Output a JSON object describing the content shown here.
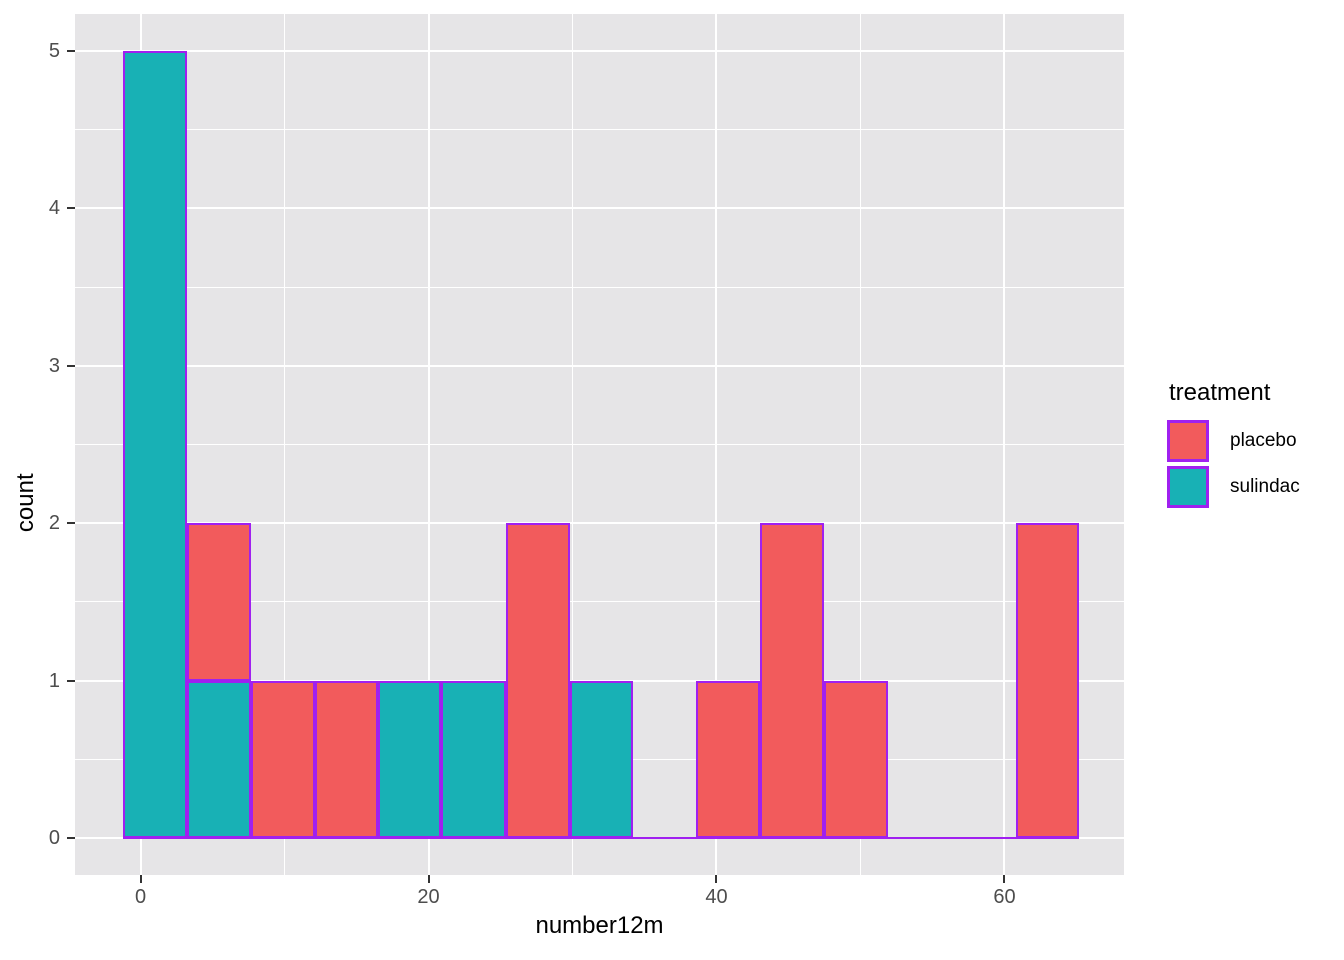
{
  "figure": {
    "x_axis_title": "number12m",
    "y_axis_title": "count"
  },
  "legend": {
    "title": "treatment",
    "items": [
      {
        "key": "placebo",
        "label": "placebo"
      },
      {
        "key": "sulindac",
        "label": "sulindac"
      }
    ]
  },
  "colors": {
    "placebo_fill": "#F25B5C",
    "sulindac_fill": "#18B1B5",
    "bar_outline": "#A020F0",
    "panel_background": "#E6E5E7",
    "gridline": "#FFFFFF",
    "tick_mark": "#333333",
    "tick_label": "#4D4D4D",
    "figure_background": "#FFFFFF"
  },
  "chart_data": {
    "type": "bar",
    "subtype": "stacked-histogram",
    "title": "",
    "xlabel": "number12m",
    "ylabel": "count",
    "legend_title": "treatment",
    "legend_position": "right",
    "grid": true,
    "x_domain": [
      -4.55,
      68.3
    ],
    "y_domain": [
      -0.235,
      5.235
    ],
    "x_ticks": [
      0,
      20,
      40,
      60
    ],
    "x_tick_labels": [
      "0",
      "20",
      "40",
      "60"
    ],
    "x_minor_ticks": [
      10,
      30,
      50
    ],
    "y_ticks": [
      0,
      1,
      2,
      3,
      4,
      5
    ],
    "y_tick_labels": [
      "0",
      "1",
      "2",
      "3",
      "4",
      "5"
    ],
    "y_minor_ticks": [
      0.5,
      1.5,
      2.5,
      3.5,
      4.5
    ],
    "series": [
      "placebo",
      "sulindac"
    ],
    "series_colors": {
      "placebo": "#F25B5C",
      "sulindac": "#18B1B5"
    },
    "bar_outline": "#A020F0",
    "bin_width": 4.42,
    "bars": [
      {
        "x0": -1.2,
        "x1": 3.2,
        "segments": [
          {
            "series": "sulindac",
            "count": 5
          }
        ]
      },
      {
        "x0": 3.2,
        "x1": 7.7,
        "segments": [
          {
            "series": "sulindac",
            "count": 1
          },
          {
            "series": "placebo",
            "count": 1
          }
        ]
      },
      {
        "x0": 7.7,
        "x1": 12.1,
        "segments": [
          {
            "series": "placebo",
            "count": 1
          }
        ]
      },
      {
        "x0": 12.1,
        "x1": 16.5,
        "segments": [
          {
            "series": "placebo",
            "count": 1
          }
        ]
      },
      {
        "x0": 16.5,
        "x1": 20.9,
        "segments": [
          {
            "series": "sulindac",
            "count": 1
          }
        ]
      },
      {
        "x0": 20.9,
        "x1": 25.4,
        "segments": [
          {
            "series": "sulindac",
            "count": 1
          }
        ]
      },
      {
        "x0": 25.4,
        "x1": 29.8,
        "segments": [
          {
            "series": "placebo",
            "count": 2
          }
        ]
      },
      {
        "x0": 29.8,
        "x1": 34.2,
        "segments": [
          {
            "series": "sulindac",
            "count": 1
          }
        ]
      },
      {
        "x0": 34.2,
        "x1": 38.6,
        "segments": []
      },
      {
        "x0": 38.6,
        "x1": 43.0,
        "segments": [
          {
            "series": "placebo",
            "count": 1
          }
        ]
      },
      {
        "x0": 43.0,
        "x1": 47.5,
        "segments": [
          {
            "series": "placebo",
            "count": 2
          }
        ]
      },
      {
        "x0": 47.5,
        "x1": 51.9,
        "segments": [
          {
            "series": "placebo",
            "count": 1
          }
        ]
      },
      {
        "x0": 51.9,
        "x1": 56.3,
        "segments": []
      },
      {
        "x0": 56.3,
        "x1": 60.8,
        "segments": []
      },
      {
        "x0": 60.8,
        "x1": 65.2,
        "segments": [
          {
            "series": "placebo",
            "count": 2
          }
        ]
      }
    ],
    "baseline": {
      "x0": -1.2,
      "x1": 65.2,
      "y": 0
    }
  }
}
